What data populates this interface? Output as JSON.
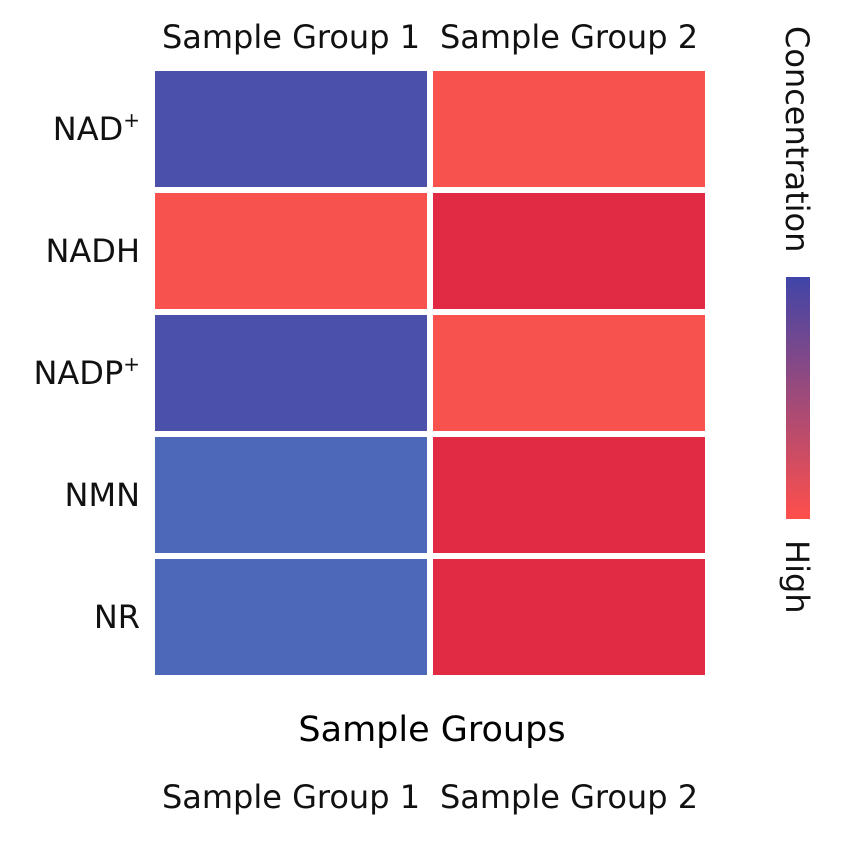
{
  "chart_data": {
    "type": "heatmap",
    "title": "",
    "xlabel": "Sample Groups",
    "ylabel": "",
    "columns": [
      "Sample Group 1",
      "Sample Group 2"
    ],
    "bottom_columns": [
      "Sample Group 1",
      "Sample Group 2"
    ],
    "rows": [
      {
        "label": "NAD",
        "sup": "+"
      },
      {
        "label": "NADH",
        "sup": ""
      },
      {
        "label": "NADP",
        "sup": "+"
      },
      {
        "label": "NMN",
        "sup": ""
      },
      {
        "label": "NR",
        "sup": ""
      }
    ],
    "cell_colors": [
      [
        "#4b50aa",
        "#f7524e"
      ],
      [
        "#f7524e",
        "#e12b44"
      ],
      [
        "#4b50aa",
        "#f7524e"
      ],
      [
        "#4d68b8",
        "#e12b44"
      ],
      [
        "#4d68b8",
        "#e12b44"
      ]
    ],
    "colorbar": {
      "title": "Concentration",
      "end_label": "High",
      "color_top": "#4045a8",
      "color_bottom": "#ff4f4b"
    }
  }
}
